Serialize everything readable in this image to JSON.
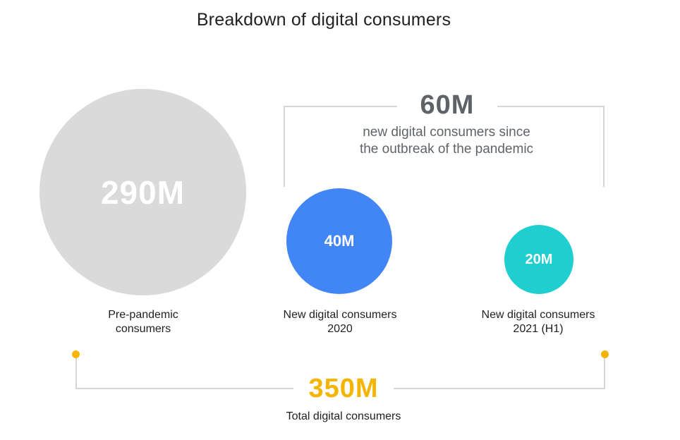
{
  "title": "Breakdown of digital consumers",
  "colors": {
    "pre_pandemic": "#dadada",
    "new_2020": "#4285f4",
    "new_2021": "#1fcfcf",
    "total_accent": "#f4b400",
    "bracket": "#d6d6d6"
  },
  "segments": [
    {
      "value": "290M",
      "label_line1": "Pre-pandemic",
      "label_line2": "consumers"
    },
    {
      "value": "40M",
      "label_line1": "New digital consumers",
      "label_line2": "2020"
    },
    {
      "value": "20M",
      "label_line1": "New digital consumers",
      "label_line2": "2021 (H1)"
    }
  ],
  "new_since_pandemic": {
    "value": "60M",
    "description_line1": "new digital consumers since",
    "description_line2": "the outbreak of the pandemic"
  },
  "total": {
    "value": "350M",
    "label": "Total digital consumers"
  }
}
